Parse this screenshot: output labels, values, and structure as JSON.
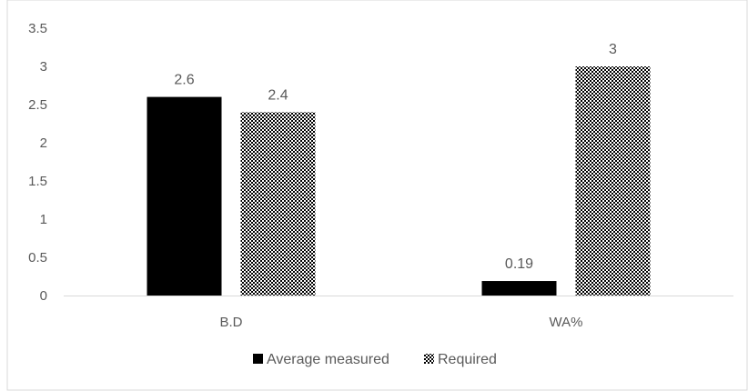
{
  "chart_data": {
    "type": "bar",
    "categories": [
      "B.D",
      "WA%"
    ],
    "series": [
      {
        "name": "Average measured",
        "values": [
          2.6,
          0.19
        ],
        "data_labels": [
          "2.6",
          "0.19"
        ],
        "fill": "solid",
        "color": "#000000"
      },
      {
        "name": "Required",
        "values": [
          2.4,
          3
        ],
        "data_labels": [
          "2.4",
          "3"
        ],
        "fill": "checkered",
        "color": "#000000"
      }
    ],
    "ylim": [
      0,
      3.5
    ],
    "y_ticks": [
      "0",
      "0.5",
      "1",
      "1.5",
      "2",
      "2.5",
      "3",
      "3.5"
    ],
    "grid": false,
    "legend_position": "bottom",
    "title": "",
    "xlabel": "",
    "ylabel": ""
  }
}
